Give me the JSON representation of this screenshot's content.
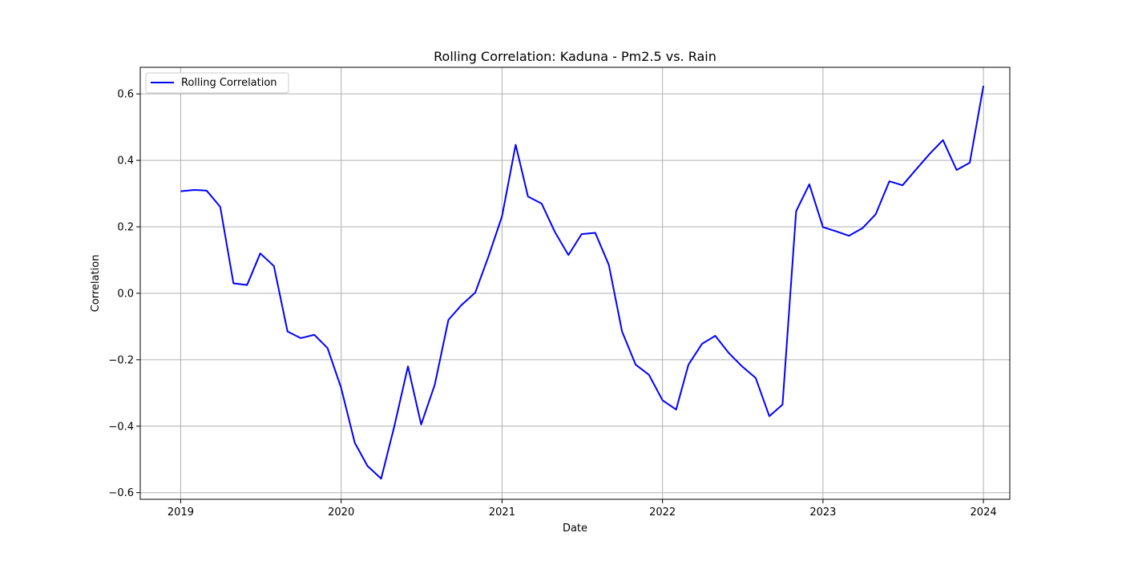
{
  "chart_data": {
    "type": "line",
    "title": "Rolling Correlation: Kaduna - Pm2.5 vs. Rain",
    "xlabel": "Date",
    "ylabel": "Correlation",
    "x_tick_labels": [
      "2019",
      "2020",
      "2021",
      "2022",
      "2023",
      "2024"
    ],
    "y_tick_labels": [
      "−0.6",
      "−0.4",
      "−0.2",
      "0.0",
      "0.2",
      "0.4",
      "0.6"
    ],
    "xlim": [
      "2018-10-01",
      "2024-03-01"
    ],
    "ylim": [
      -0.62,
      0.68
    ],
    "grid": true,
    "legend_position": "upper-left",
    "x": [
      "2019-01",
      "2019-02",
      "2019-03",
      "2019-04",
      "2019-05",
      "2019-06",
      "2019-07",
      "2019-08",
      "2019-09",
      "2019-10",
      "2019-11",
      "2019-12",
      "2020-01",
      "2020-02",
      "2020-03",
      "2020-04",
      "2020-05",
      "2020-06",
      "2020-07",
      "2020-08",
      "2020-09",
      "2020-10",
      "2020-11",
      "2020-12",
      "2021-01",
      "2021-02",
      "2021-03",
      "2021-04",
      "2021-05",
      "2021-06",
      "2021-07",
      "2021-08",
      "2021-09",
      "2021-10",
      "2021-11",
      "2021-12",
      "2022-01",
      "2022-02",
      "2022-03",
      "2022-04",
      "2022-05",
      "2022-06",
      "2022-07",
      "2022-08",
      "2022-09",
      "2022-10",
      "2022-11",
      "2022-12",
      "2023-01",
      "2023-02",
      "2023-03",
      "2023-04",
      "2023-05",
      "2023-06",
      "2023-07",
      "2023-08",
      "2023-09",
      "2023-10",
      "2023-11",
      "2023-12",
      "2024-01"
    ],
    "series": [
      {
        "name": "Rolling Correlation",
        "color": "#0000ff",
        "values": [
          0.307,
          0.311,
          0.309,
          0.26,
          0.03,
          0.025,
          0.12,
          0.082,
          -0.115,
          -0.135,
          -0.125,
          -0.165,
          -0.285,
          -0.45,
          -0.52,
          -0.558,
          -0.4,
          -0.22,
          -0.395,
          -0.275,
          -0.08,
          -0.035,
          0.002,
          0.11,
          0.232,
          0.447,
          0.291,
          0.27,
          0.185,
          0.115,
          0.178,
          0.182,
          0.085,
          -0.115,
          -0.215,
          -0.245,
          -0.322,
          -0.35,
          -0.215,
          -0.152,
          -0.128,
          -0.18,
          -0.22,
          -0.255,
          -0.37,
          -0.335,
          0.247,
          0.328,
          0.199,
          0.186,
          0.173,
          0.196,
          0.238,
          0.337,
          0.325,
          0.373,
          0.42,
          0.461,
          0.371,
          0.393,
          0.624
        ]
      }
    ]
  }
}
